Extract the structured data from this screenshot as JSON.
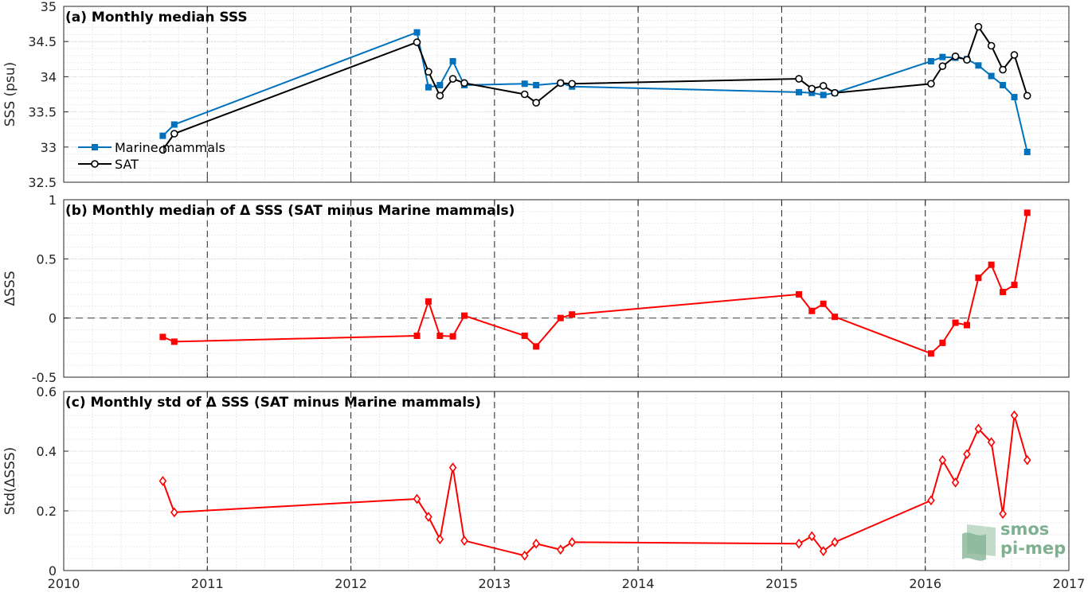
{
  "chart_data": [
    {
      "type": "line",
      "title": "(a) Monthly median SSS",
      "xlabel": "",
      "ylabel": "SSS (psu)",
      "xlim": [
        2010,
        2017
      ],
      "ylim": [
        32.5,
        35
      ],
      "xticks": [
        2010,
        2011,
        2012,
        2013,
        2014,
        2015,
        2016,
        2017
      ],
      "yticks": [
        32.5,
        33,
        33.5,
        34,
        34.5,
        35
      ],
      "ytick_labels": [
        "32.5",
        "33",
        "33.5",
        "34",
        "34.5",
        "35"
      ],
      "grid": true,
      "year_lines": true,
      "legend_position": "left",
      "series": [
        {
          "name": "Marine mammals",
          "color": "#0072BD",
          "marker": "square",
          "x": [
            2010.69,
            2010.77,
            2012.46,
            2012.54,
            2012.62,
            2012.71,
            2012.79,
            2013.21,
            2013.29,
            2013.46,
            2013.54,
            2015.12,
            2015.21,
            2015.29,
            2015.37,
            2016.04,
            2016.12,
            2016.21,
            2016.29,
            2016.37,
            2016.46,
            2016.54,
            2016.62,
            2016.71
          ],
          "y": [
            33.16,
            33.32,
            34.63,
            33.85,
            33.88,
            34.22,
            33.88,
            33.9,
            33.88,
            33.91,
            33.86,
            33.78,
            33.77,
            33.74,
            33.77,
            34.22,
            34.28,
            34.27,
            34.25,
            34.16,
            34.01,
            33.88,
            33.71,
            32.93
          ]
        },
        {
          "name": "SAT",
          "color": "#000000",
          "marker": "circle",
          "x": [
            2010.69,
            2010.77,
            2012.46,
            2012.54,
            2012.62,
            2012.71,
            2012.79,
            2013.21,
            2013.29,
            2013.46,
            2013.54,
            2015.12,
            2015.21,
            2015.29,
            2015.37,
            2016.04,
            2016.12,
            2016.21,
            2016.29,
            2016.37,
            2016.46,
            2016.54,
            2016.62,
            2016.71
          ],
          "y": [
            32.96,
            33.19,
            34.49,
            34.07,
            33.73,
            33.97,
            33.91,
            33.75,
            33.63,
            33.91,
            33.9,
            33.97,
            33.83,
            33.87,
            33.77,
            33.9,
            34.15,
            34.29,
            34.24,
            34.71,
            34.44,
            34.1,
            34.31,
            33.73
          ]
        }
      ]
    },
    {
      "type": "line",
      "title": "(b) Monthly median of Δ SSS (SAT minus Marine mammals)",
      "xlabel": "",
      "ylabel": "ΔSSS",
      "xlim": [
        2010,
        2017
      ],
      "ylim": [
        -0.5,
        1
      ],
      "xticks": [
        2010,
        2011,
        2012,
        2013,
        2014,
        2015,
        2016,
        2017
      ],
      "yticks": [
        -0.5,
        0,
        0.5,
        1
      ],
      "ytick_labels": [
        "-0.5",
        "0",
        "0.5",
        "1"
      ],
      "grid": true,
      "year_lines": true,
      "zero_line": true,
      "series": [
        {
          "color": "#FF0000",
          "marker": "square",
          "x": [
            2010.69,
            2010.77,
            2012.46,
            2012.54,
            2012.62,
            2012.71,
            2012.79,
            2013.21,
            2013.29,
            2013.46,
            2013.54,
            2015.12,
            2015.21,
            2015.29,
            2015.37,
            2016.04,
            2016.12,
            2016.21,
            2016.29,
            2016.37,
            2016.46,
            2016.54,
            2016.62,
            2016.71
          ],
          "y": [
            -0.16,
            -0.2,
            -0.15,
            0.14,
            -0.15,
            -0.155,
            0.02,
            -0.15,
            -0.24,
            0.0,
            0.03,
            0.2,
            0.06,
            0.12,
            0.01,
            -0.3,
            -0.21,
            -0.04,
            -0.06,
            0.34,
            0.45,
            0.22,
            0.28,
            0.89
          ]
        }
      ]
    },
    {
      "type": "line",
      "title": "(c) Monthly std of Δ SSS (SAT minus Marine mammals)",
      "xlabel": "",
      "ylabel": "Std(ΔSSS)",
      "xlim": [
        2010,
        2017
      ],
      "ylim": [
        0,
        0.6
      ],
      "xticks": [
        2010,
        2011,
        2012,
        2013,
        2014,
        2015,
        2016,
        2017
      ],
      "xtick_labels": [
        "2010",
        "2011",
        "2012",
        "2013",
        "2014",
        "2015",
        "2016",
        "2017"
      ],
      "yticks": [
        0,
        0.2,
        0.4,
        0.6
      ],
      "ytick_labels": [
        "0",
        "0.2",
        "0.4",
        "0.6"
      ],
      "grid": true,
      "year_lines": true,
      "series": [
        {
          "color": "#FF0000",
          "marker": "diamond",
          "x": [
            2010.69,
            2010.77,
            2012.46,
            2012.54,
            2012.62,
            2012.71,
            2012.79,
            2013.21,
            2013.29,
            2013.46,
            2013.54,
            2015.12,
            2015.21,
            2015.29,
            2015.37,
            2016.04,
            2016.12,
            2016.21,
            2016.29,
            2016.37,
            2016.46,
            2016.54,
            2016.62,
            2016.71
          ],
          "y": [
            0.3,
            0.195,
            0.24,
            0.18,
            0.105,
            0.345,
            0.1,
            0.05,
            0.09,
            0.07,
            0.095,
            0.09,
            0.115,
            0.065,
            0.095,
            0.235,
            0.37,
            0.295,
            0.39,
            0.475,
            0.43,
            0.19,
            0.52,
            0.37
          ]
        }
      ]
    }
  ],
  "logo": {
    "line1": "smos",
    "line2": "pi-mep",
    "color": "#7fb08f"
  }
}
